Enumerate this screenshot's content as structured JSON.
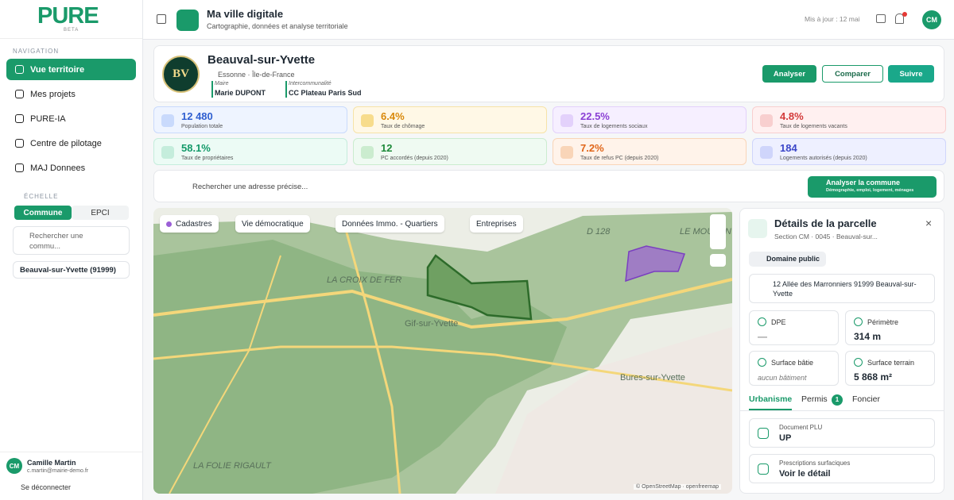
{
  "sidebar": {
    "logo": "PURE",
    "logo_badge": "BETA",
    "nav_title": "NAVIGATION",
    "nav": [
      "Vue territoire",
      "Mes projets",
      "PURE-IA",
      "Centre de pilotage",
      "MAJ Donnees"
    ],
    "scale_title": "ÉCHELLE",
    "scale_options": [
      "Commune",
      "EPCI"
    ],
    "search_placeholder": "Rechercher une commu...",
    "selected": "Beauval-sur-Yvette (91999)",
    "user": {
      "initials": "CM",
      "name": "Camille Martin",
      "email": "c.martin@mairie-demo.fr"
    },
    "logout": "Se déconnecter"
  },
  "header": {
    "title": "Ma ville digitale",
    "subtitle": "Cartographie, données et analyse territoriale",
    "updated": "Mis à jour : 12 mai",
    "initials": "CM"
  },
  "commune": {
    "name": "Beauval-sur-Yvette",
    "logo": "BV",
    "location": "Essonne · Île-de-France",
    "mayor_label": "Maire",
    "mayor": "Marie DUPONT",
    "interco_label": "Intercommunalité",
    "interco": "CC Plateau Paris Sud",
    "actions": [
      "Analyser",
      "Comparer",
      "Suivre"
    ]
  },
  "stats": [
    {
      "value": "12 480",
      "label": "Population totale"
    },
    {
      "value": "6.4%",
      "label": "Taux de chômage"
    },
    {
      "value": "22.5%",
      "label": "Taux de logements sociaux"
    },
    {
      "value": "4.8%",
      "label": "Taux de logements vacants"
    },
    {
      "value": "58.1%",
      "label": "Taux de propriétaires"
    },
    {
      "value": "12",
      "label": "PC accordés (depuis 2020)"
    },
    {
      "value": "7.2%",
      "label": "Taux de refus PC (depuis 2020)"
    },
    {
      "value": "184",
      "label": "Logements autorisés (depuis 2020)"
    }
  ],
  "search": {
    "placeholder": "Rechercher une adresse précise...",
    "button": "Analyser la commune",
    "button_sub": "Démographie, emploi, logement, ménages"
  },
  "map": {
    "filters": [
      "Cadastres",
      "Vie démocratique",
      "Données Immo. - Quartiers",
      "Entreprises"
    ],
    "labels": [
      "LA CROIX DE FER",
      "Gif-sur-Yvette",
      "Bures-sur-Yvette",
      "LA FOLIE RIGAULT",
      "LE MOULON",
      "D 128"
    ],
    "attribution": "© OpenStreetMap · openfreemap"
  },
  "parcel": {
    "title": "Détails de la parcelle",
    "ref": "Section CM · 0045 · Beauval-sur...",
    "tag": "Domaine public",
    "address": "12 Allée des Marronniers 91999 Beauval-sur-Yvette",
    "metrics": [
      {
        "label": "DPE",
        "value": "—"
      },
      {
        "label": "Périmètre",
        "value": "314 m"
      },
      {
        "label": "Surface bâtie",
        "value": "aucun bâtiment"
      },
      {
        "label": "Surface terrain",
        "value": "5 868 m²"
      }
    ],
    "tabs": [
      "Urbanisme",
      "Permis",
      "Foncier"
    ],
    "permis_count": 1,
    "docs": [
      {
        "label": "Document PLU",
        "value": "UP"
      },
      {
        "label": "Prescriptions surfaciques",
        "value": "Voir le détail"
      }
    ]
  }
}
